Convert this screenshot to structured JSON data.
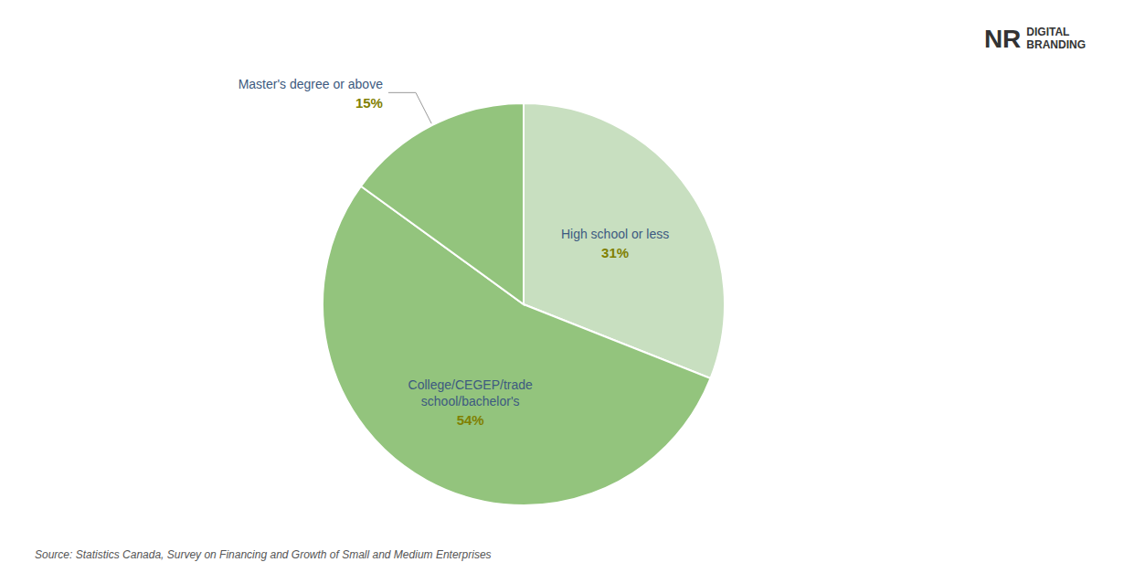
{
  "chart_data": {
    "type": "pie",
    "categories": [
      "High school or less",
      "College/CEGEP/trade\nschool/bachelor's",
      "Master's degree or above"
    ],
    "values": [
      31,
      54,
      15
    ],
    "value_labels": [
      "31%",
      "54%",
      "15%"
    ],
    "colors": [
      "#c8dfc0",
      "#93c47d",
      "#93c47d"
    ],
    "data_labels": true,
    "annotations": [
      "Source: Statistics Canada, Survey on Financing and Growth of Small and Medium Enterprises",
      "NR",
      "DIGITAL\nBRANDING"
    ]
  }
}
